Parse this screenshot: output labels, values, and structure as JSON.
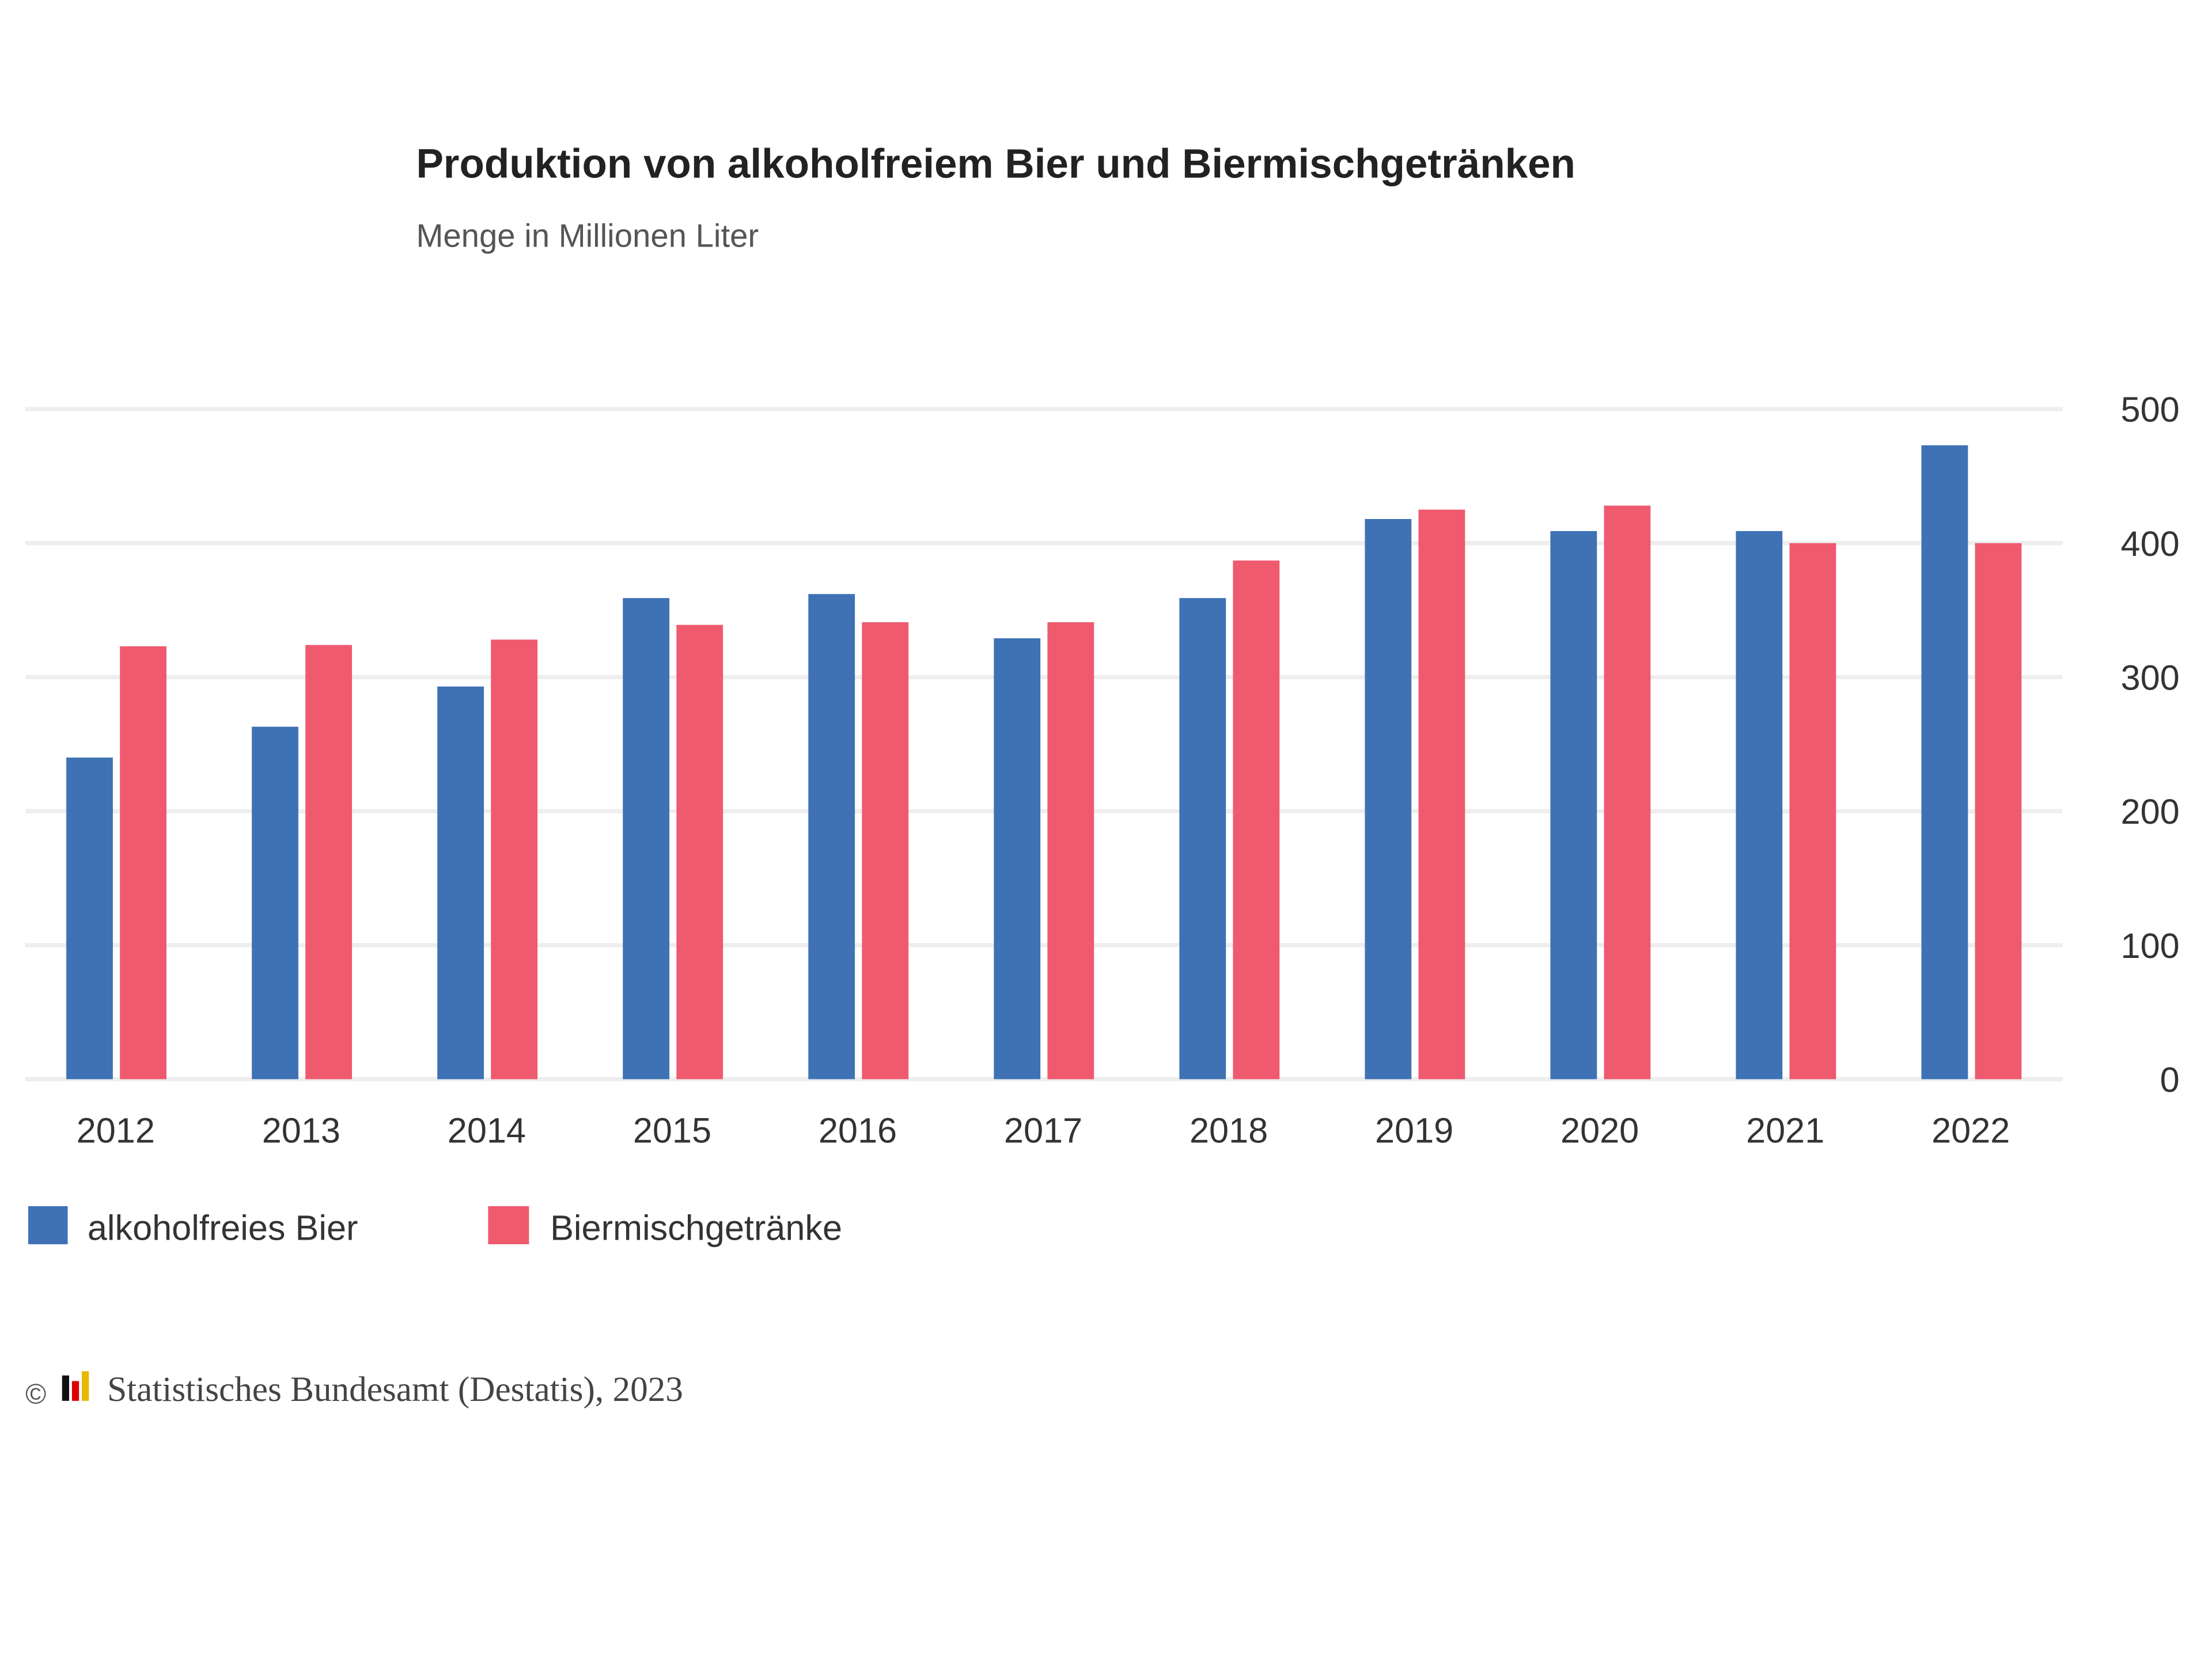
{
  "chart_data": {
    "type": "bar",
    "title": "Produktion von alkoholfreiem Bier und Biermischgetränken",
    "subtitle": "Menge in Millionen Liter",
    "categories": [
      "2012",
      "2013",
      "2014",
      "2015",
      "2016",
      "2017",
      "2018",
      "2019",
      "2020",
      "2021",
      "2022"
    ],
    "series": [
      {
        "name": "alkoholfreies Bier",
        "color": "#3f72b5",
        "values": [
          240,
          263,
          293,
          359,
          362,
          329,
          359,
          418,
          409,
          409,
          473
        ]
      },
      {
        "name": "Biermischgetränke",
        "color": "#ef5a6f",
        "values": [
          323,
          324,
          328,
          339,
          341,
          341,
          387,
          425,
          428,
          400,
          400
        ]
      }
    ],
    "ylim": [
      0,
      500
    ],
    "yticks": [
      "0",
      "100",
      "200",
      "300",
      "400",
      "500"
    ],
    "y_axis_side": "right",
    "grid": true,
    "legend_position": "bottom-left"
  },
  "footer": {
    "copyright": "©",
    "source": "Statistisches Bundesamt (Destatis), 2023"
  }
}
